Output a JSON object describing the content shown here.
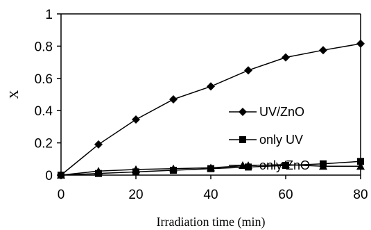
{
  "chart_data": {
    "type": "line",
    "title": "",
    "xlabel": "Irradiation time (min)",
    "ylabel": "X",
    "xlim": [
      0,
      80
    ],
    "ylim": [
      0,
      1
    ],
    "xticks": [
      "0",
      "20",
      "40",
      "60",
      "80"
    ],
    "yticks": [
      "0",
      "0.2",
      "0.4",
      "0.6",
      "0.8",
      "1"
    ],
    "grid": false,
    "legend_position": "right",
    "series": [
      {
        "name": "UV/ZnO",
        "marker": "diamond",
        "x": [
          0,
          10,
          20,
          30,
          40,
          50,
          60,
          70,
          80
        ],
        "y": [
          0.0,
          0.19,
          0.345,
          0.47,
          0.55,
          0.65,
          0.73,
          0.775,
          0.815
        ]
      },
      {
        "name": "only UV",
        "marker": "square",
        "x": [
          0,
          10,
          20,
          30,
          40,
          50,
          60,
          70,
          80
        ],
        "y": [
          0.0,
          0.01,
          0.02,
          0.03,
          0.04,
          0.05,
          0.06,
          0.07,
          0.085
        ]
      },
      {
        "name": "only ZnO",
        "marker": "triangle",
        "x": [
          0,
          10,
          20,
          30,
          40,
          50,
          60,
          70,
          80
        ],
        "y": [
          0.0,
          0.025,
          0.035,
          0.04,
          0.045,
          0.06,
          0.065,
          0.055,
          0.055
        ]
      }
    ],
    "line_color": "#000000"
  }
}
